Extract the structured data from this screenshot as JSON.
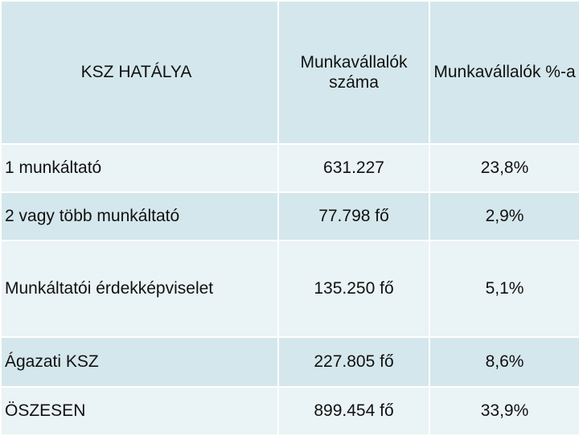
{
  "table": {
    "headers": {
      "label": "KSZ HATÁLYA",
      "col1": "Munkavállalók száma",
      "col2": "Munkavállalók %-a"
    },
    "rows": [
      {
        "label": "1 munkáltató",
        "count": "631.227",
        "percent": "23,8%"
      },
      {
        "label": "2 vagy több munkáltató",
        "count": "77.798 fő",
        "percent": "2,9%"
      },
      {
        "label": "Munkáltatói érdekképviselet",
        "count": "135.250 fő",
        "percent": "5,1%"
      },
      {
        "label": "Ágazati KSZ",
        "count": "227.805 fő",
        "percent": "8,6%"
      },
      {
        "label": "ÖSZESEN",
        "count": "899.454 fő",
        "percent": "33,9%"
      }
    ]
  },
  "colors": {
    "row_dark": "#d4e7ec",
    "row_light": "#eaf3f5",
    "border": "#ffffff"
  }
}
